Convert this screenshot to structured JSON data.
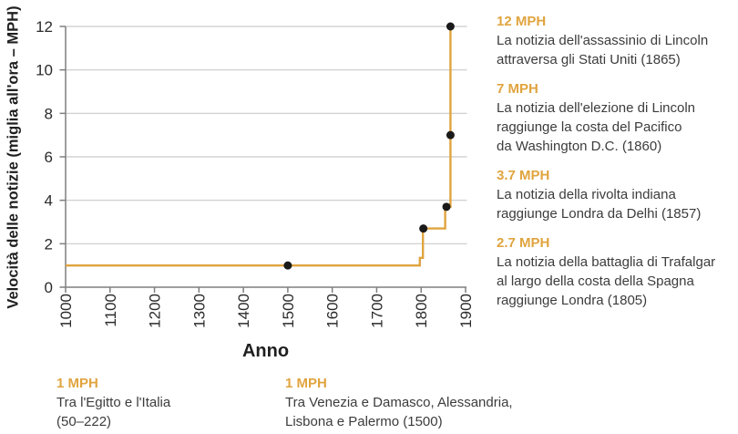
{
  "colors": {
    "accent": "#E0A43F",
    "axis": "#7f7f7f",
    "grid": "#c9c9c9",
    "marker": "#1a1a1a",
    "text": "#3c3c3c"
  },
  "chart_data": {
    "type": "line",
    "title": "",
    "xlabel": "Anno",
    "ylabel": "Velocità delle notizie (miglia all'ora – MPH)",
    "xlim": [
      1000,
      1900
    ],
    "ylim": [
      0,
      12
    ],
    "x_ticks": [
      1000,
      1100,
      1200,
      1300,
      1400,
      1500,
      1600,
      1700,
      1800,
      1900
    ],
    "y_ticks": [
      0,
      2,
      4,
      6,
      8,
      10,
      12
    ],
    "grid": "horizontal",
    "legend": "none",
    "line_color": "#E0A43F",
    "series": [
      {
        "name": "Velocità delle notizie (MPH)",
        "step_points": [
          [
            1000,
            1
          ],
          [
            1797,
            1
          ],
          [
            1797,
            1.35
          ],
          [
            1804,
            1.35
          ],
          [
            1804,
            2.7
          ],
          [
            1854,
            2.7
          ],
          [
            1854,
            3.7
          ],
          [
            1866,
            3.7
          ],
          [
            1866,
            12
          ]
        ]
      }
    ],
    "markers": [
      {
        "x": 1500,
        "y": 1
      },
      {
        "x": 1805,
        "y": 2.7
      },
      {
        "x": 1857,
        "y": 3.7
      },
      {
        "x": 1866,
        "y": 7
      },
      {
        "x": 1866,
        "y": 12
      }
    ]
  },
  "annotations_right": [
    {
      "speed": "12 MPH",
      "text": "La notizia dell'assassinio di Lincoln\nattraversa gli Stati Uniti (1865)"
    },
    {
      "speed": "7 MPH",
      "text": "La notizia dell'elezione di Lincoln\nraggiunge la costa del Pacifico\nda Washington D.C. (1860)"
    },
    {
      "speed": "3.7 MPH",
      "text": "La notizia della rivolta indiana\nraggiunge Londra da Delhi (1857)"
    },
    {
      "speed": "2.7 MPH",
      "text": "La notizia della battaglia di Trafalgar\nal largo della costa della Spagna\nraggiunge Londra (1805)"
    }
  ],
  "annotations_bottom": [
    {
      "speed": "1 MPH",
      "text": "Tra l'Egitto e l'Italia\n(50–222)"
    },
    {
      "speed": "1 MPH",
      "text": "Tra Venezia e Damasco, Alessandria,\nLisbona e Palermo (1500)"
    }
  ]
}
